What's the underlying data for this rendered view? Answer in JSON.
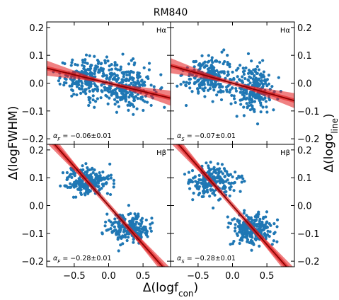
{
  "figure": {
    "title": "RM840",
    "xlabel": "Δ(logf",
    "xlabel_sub": "con",
    "xlabel_close": ")",
    "ylabel_left": "Δ(logFWHM)",
    "ylabel_right": "Δ(logσ",
    "ylabel_right_sub": "line",
    "ylabel_right_close": ")"
  },
  "chart_data": [
    {
      "type": "scatter",
      "panel": "top-left",
      "label": "Hα",
      "annotation_symbol": "α",
      "annotation_sub": "F",
      "annotation_text": " = −0.06±0.01",
      "slope": -0.06,
      "slope_err": 0.01,
      "xlim": [
        -0.9,
        0.9
      ],
      "ylim": [
        -0.22,
        0.22
      ],
      "x_ticks": [
        -0.5,
        0.0,
        0.5
      ],
      "y_ticks": [
        -0.2,
        -0.1,
        0.0,
        0.1,
        0.2
      ],
      "y_tick_labels": [
        "−0.2",
        "−0.1",
        "0.0",
        "0.1",
        "0.2"
      ],
      "point_color": "#1f77b4",
      "fit_color": "#8b0000",
      "band_color": "#e31a1c",
      "clusters": [
        {
          "cx": -0.3,
          "cy": 0.02,
          "sx": 0.2,
          "sy": 0.035,
          "n": 230
        },
        {
          "cx": 0.3,
          "cy": -0.015,
          "sx": 0.17,
          "sy": 0.04,
          "n": 230
        }
      ]
    },
    {
      "type": "scatter",
      "panel": "top-right",
      "label": "Hα",
      "annotation_symbol": "α",
      "annotation_sub": "S",
      "annotation_text": " = −0.07±0.01",
      "slope": -0.07,
      "slope_err": 0.01,
      "xlim": [
        -0.9,
        0.9
      ],
      "ylim": [
        -0.22,
        0.22
      ],
      "x_ticks": [
        -0.5,
        0.0,
        0.5
      ],
      "y_ticks": [
        -0.2,
        -0.1,
        0.0,
        0.1,
        0.2
      ],
      "y_tick_labels": [
        "−0.2",
        "−0.1",
        "0.0",
        "0.1",
        "0.2"
      ],
      "point_color": "#1f77b4",
      "fit_color": "#8b0000",
      "band_color": "#e31a1c",
      "clusters": [
        {
          "cx": -0.35,
          "cy": 0.025,
          "sx": 0.18,
          "sy": 0.035,
          "n": 230
        },
        {
          "cx": 0.3,
          "cy": -0.02,
          "sx": 0.15,
          "sy": 0.04,
          "n": 230
        }
      ]
    },
    {
      "type": "scatter",
      "panel": "bottom-left",
      "label": "Hβ",
      "annotation_symbol": "α",
      "annotation_sub": "F",
      "annotation_text": " = −0.28±0.01",
      "slope": -0.28,
      "slope_err": 0.01,
      "xlim": [
        -0.9,
        0.9
      ],
      "ylim": [
        -0.22,
        0.22
      ],
      "x_ticks": [
        -0.5,
        0.0,
        0.5
      ],
      "x_tick_labels": [
        "−0.5",
        "0.0",
        "0.5"
      ],
      "y_ticks": [
        -0.2,
        -0.1,
        0.0,
        0.1,
        0.2
      ],
      "point_color": "#1f77b4",
      "fit_color": "#8b0000",
      "band_color": "#e31a1c",
      "clusters": [
        {
          "cx": -0.3,
          "cy": 0.085,
          "sx": 0.17,
          "sy": 0.025,
          "n": 230
        },
        {
          "cx": 0.3,
          "cy": -0.08,
          "sx": 0.15,
          "sy": 0.025,
          "n": 230
        }
      ]
    },
    {
      "type": "scatter",
      "panel": "bottom-right",
      "label": "Hβ",
      "annotation_symbol": "α",
      "annotation_sub": "S",
      "annotation_text": " = −0.28±0.01",
      "slope": -0.28,
      "slope_err": 0.01,
      "xlim": [
        -0.9,
        0.9
      ],
      "ylim": [
        -0.22,
        0.22
      ],
      "x_ticks": [
        -0.5,
        0.0,
        0.5
      ],
      "x_tick_labels": [
        "−0.5",
        "0.0",
        "0.5"
      ],
      "y_ticks": [
        -0.2,
        -0.1,
        0.0,
        0.1,
        0.2
      ],
      "point_color": "#1f77b4",
      "fit_color": "#8b0000",
      "band_color": "#e31a1c",
      "clusters": [
        {
          "cx": -0.3,
          "cy": 0.085,
          "sx": 0.17,
          "sy": 0.028,
          "n": 230
        },
        {
          "cx": 0.3,
          "cy": -0.085,
          "sx": 0.15,
          "sy": 0.028,
          "n": 230
        }
      ]
    }
  ]
}
